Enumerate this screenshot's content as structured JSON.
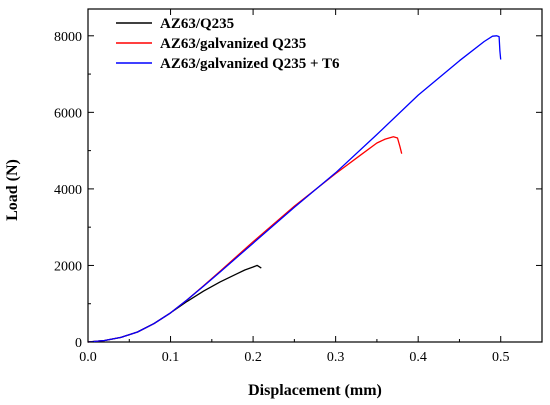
{
  "chart_data": {
    "type": "line",
    "title": "",
    "xlabel": "Displacement (mm)",
    "ylabel": "Load (N)",
    "xlim": [
      0.0,
      0.55
    ],
    "ylim": [
      0,
      8700
    ],
    "x_ticks": [
      "0.0",
      "0.1",
      "0.2",
      "0.3",
      "0.4",
      "0.5"
    ],
    "y_ticks": [
      "0",
      "2000",
      "4000",
      "6000",
      "8000"
    ],
    "grid": false,
    "legend_position": "top-left",
    "series": [
      {
        "name": "AZ63/Q235",
        "color": "#000000",
        "points": [
          [
            0.0,
            0
          ],
          [
            0.02,
            40
          ],
          [
            0.04,
            120
          ],
          [
            0.06,
            260
          ],
          [
            0.08,
            480
          ],
          [
            0.1,
            760
          ],
          [
            0.12,
            1060
          ],
          [
            0.14,
            1330
          ],
          [
            0.16,
            1570
          ],
          [
            0.18,
            1780
          ],
          [
            0.19,
            1880
          ],
          [
            0.2,
            1960
          ],
          [
            0.205,
            2000
          ],
          [
            0.21,
            1930
          ]
        ]
      },
      {
        "name": "AZ63/galvanized Q235",
        "color": "#ff0000",
        "points": [
          [
            0.0,
            0
          ],
          [
            0.02,
            40
          ],
          [
            0.04,
            120
          ],
          [
            0.06,
            260
          ],
          [
            0.08,
            480
          ],
          [
            0.1,
            760
          ],
          [
            0.12,
            1100
          ],
          [
            0.14,
            1470
          ],
          [
            0.16,
            1850
          ],
          [
            0.2,
            2620
          ],
          [
            0.25,
            3550
          ],
          [
            0.3,
            4400
          ],
          [
            0.33,
            4880
          ],
          [
            0.35,
            5200
          ],
          [
            0.36,
            5300
          ],
          [
            0.37,
            5360
          ],
          [
            0.375,
            5330
          ],
          [
            0.378,
            5100
          ],
          [
            0.38,
            4920
          ]
        ]
      },
      {
        "name": "AZ63/galvanized Q235 + T6",
        "color": "#0000ff",
        "points": [
          [
            0.0,
            0
          ],
          [
            0.02,
            40
          ],
          [
            0.04,
            120
          ],
          [
            0.06,
            260
          ],
          [
            0.08,
            480
          ],
          [
            0.1,
            760
          ],
          [
            0.12,
            1100
          ],
          [
            0.14,
            1460
          ],
          [
            0.16,
            1830
          ],
          [
            0.2,
            2580
          ],
          [
            0.25,
            3520
          ],
          [
            0.3,
            4420
          ],
          [
            0.35,
            5420
          ],
          [
            0.4,
            6450
          ],
          [
            0.45,
            7350
          ],
          [
            0.48,
            7850
          ],
          [
            0.49,
            7990
          ],
          [
            0.495,
            8000
          ],
          [
            0.498,
            7980
          ],
          [
            0.499,
            7600
          ],
          [
            0.5,
            7380
          ]
        ]
      }
    ]
  }
}
